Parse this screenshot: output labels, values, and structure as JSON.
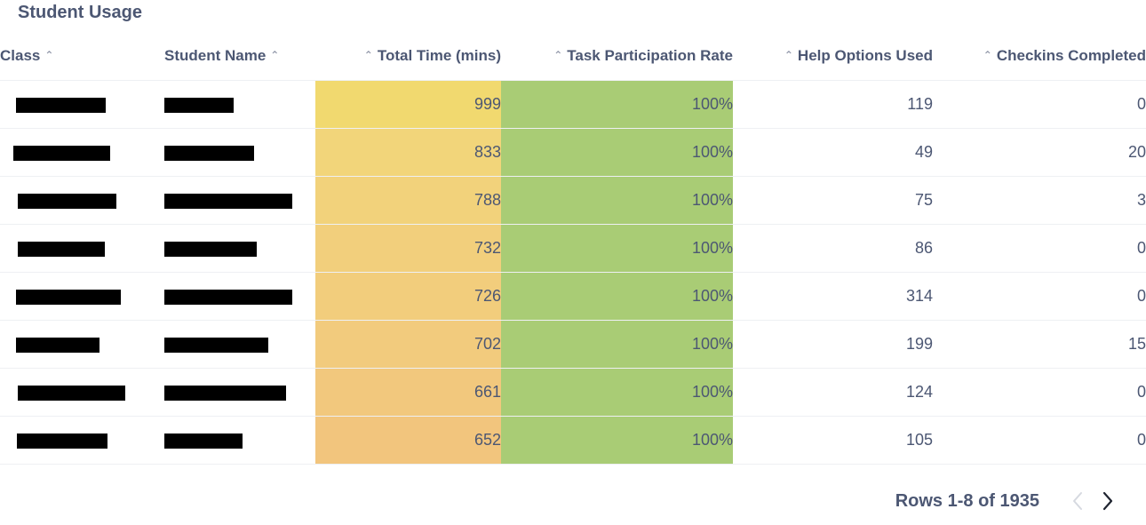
{
  "title": "Student Usage",
  "columns": {
    "class": "Class",
    "student_name": "Student Name",
    "total_time": "Total Time (mins)",
    "task_participation": "Task Participation Rate",
    "help_options": "Help Options Used",
    "checkins": "Checkins Completed"
  },
  "rows": [
    {
      "total_time": "999",
      "rate": "100%",
      "help": "119",
      "checkins": "0",
      "time_color": "#f1d96f",
      "rate_color": "#a9cc75"
    },
    {
      "total_time": "833",
      "rate": "100%",
      "help": "49",
      "checkins": "20",
      "time_color": "#f2d57a",
      "rate_color": "#a9cc75"
    },
    {
      "total_time": "788",
      "rate": "100%",
      "help": "75",
      "checkins": "3",
      "time_color": "#f2d27b",
      "rate_color": "#a9cc75"
    },
    {
      "total_time": "732",
      "rate": "100%",
      "help": "86",
      "checkins": "0",
      "time_color": "#f2cf7c",
      "rate_color": "#a9cc75"
    },
    {
      "total_time": "726",
      "rate": "100%",
      "help": "314",
      "checkins": "0",
      "time_color": "#f2cd7c",
      "rate_color": "#a9cc75"
    },
    {
      "total_time": "702",
      "rate": "100%",
      "help": "199",
      "checkins": "15",
      "time_color": "#f2cb7d",
      "rate_color": "#a9cc75"
    },
    {
      "total_time": "661",
      "rate": "100%",
      "help": "124",
      "checkins": "0",
      "time_color": "#f2c87d",
      "rate_color": "#a9cc75"
    },
    {
      "total_time": "652",
      "rate": "100%",
      "help": "105",
      "checkins": "0",
      "time_color": "#f2c57d",
      "rate_color": "#a9cc75"
    }
  ],
  "pagination": {
    "label": "Rows 1-8 of 1935",
    "prev_icon": "chevron-left-icon",
    "next_icon": "chevron-right-icon"
  },
  "colors": {
    "text": "#4c5773",
    "muted": "#949aab"
  }
}
